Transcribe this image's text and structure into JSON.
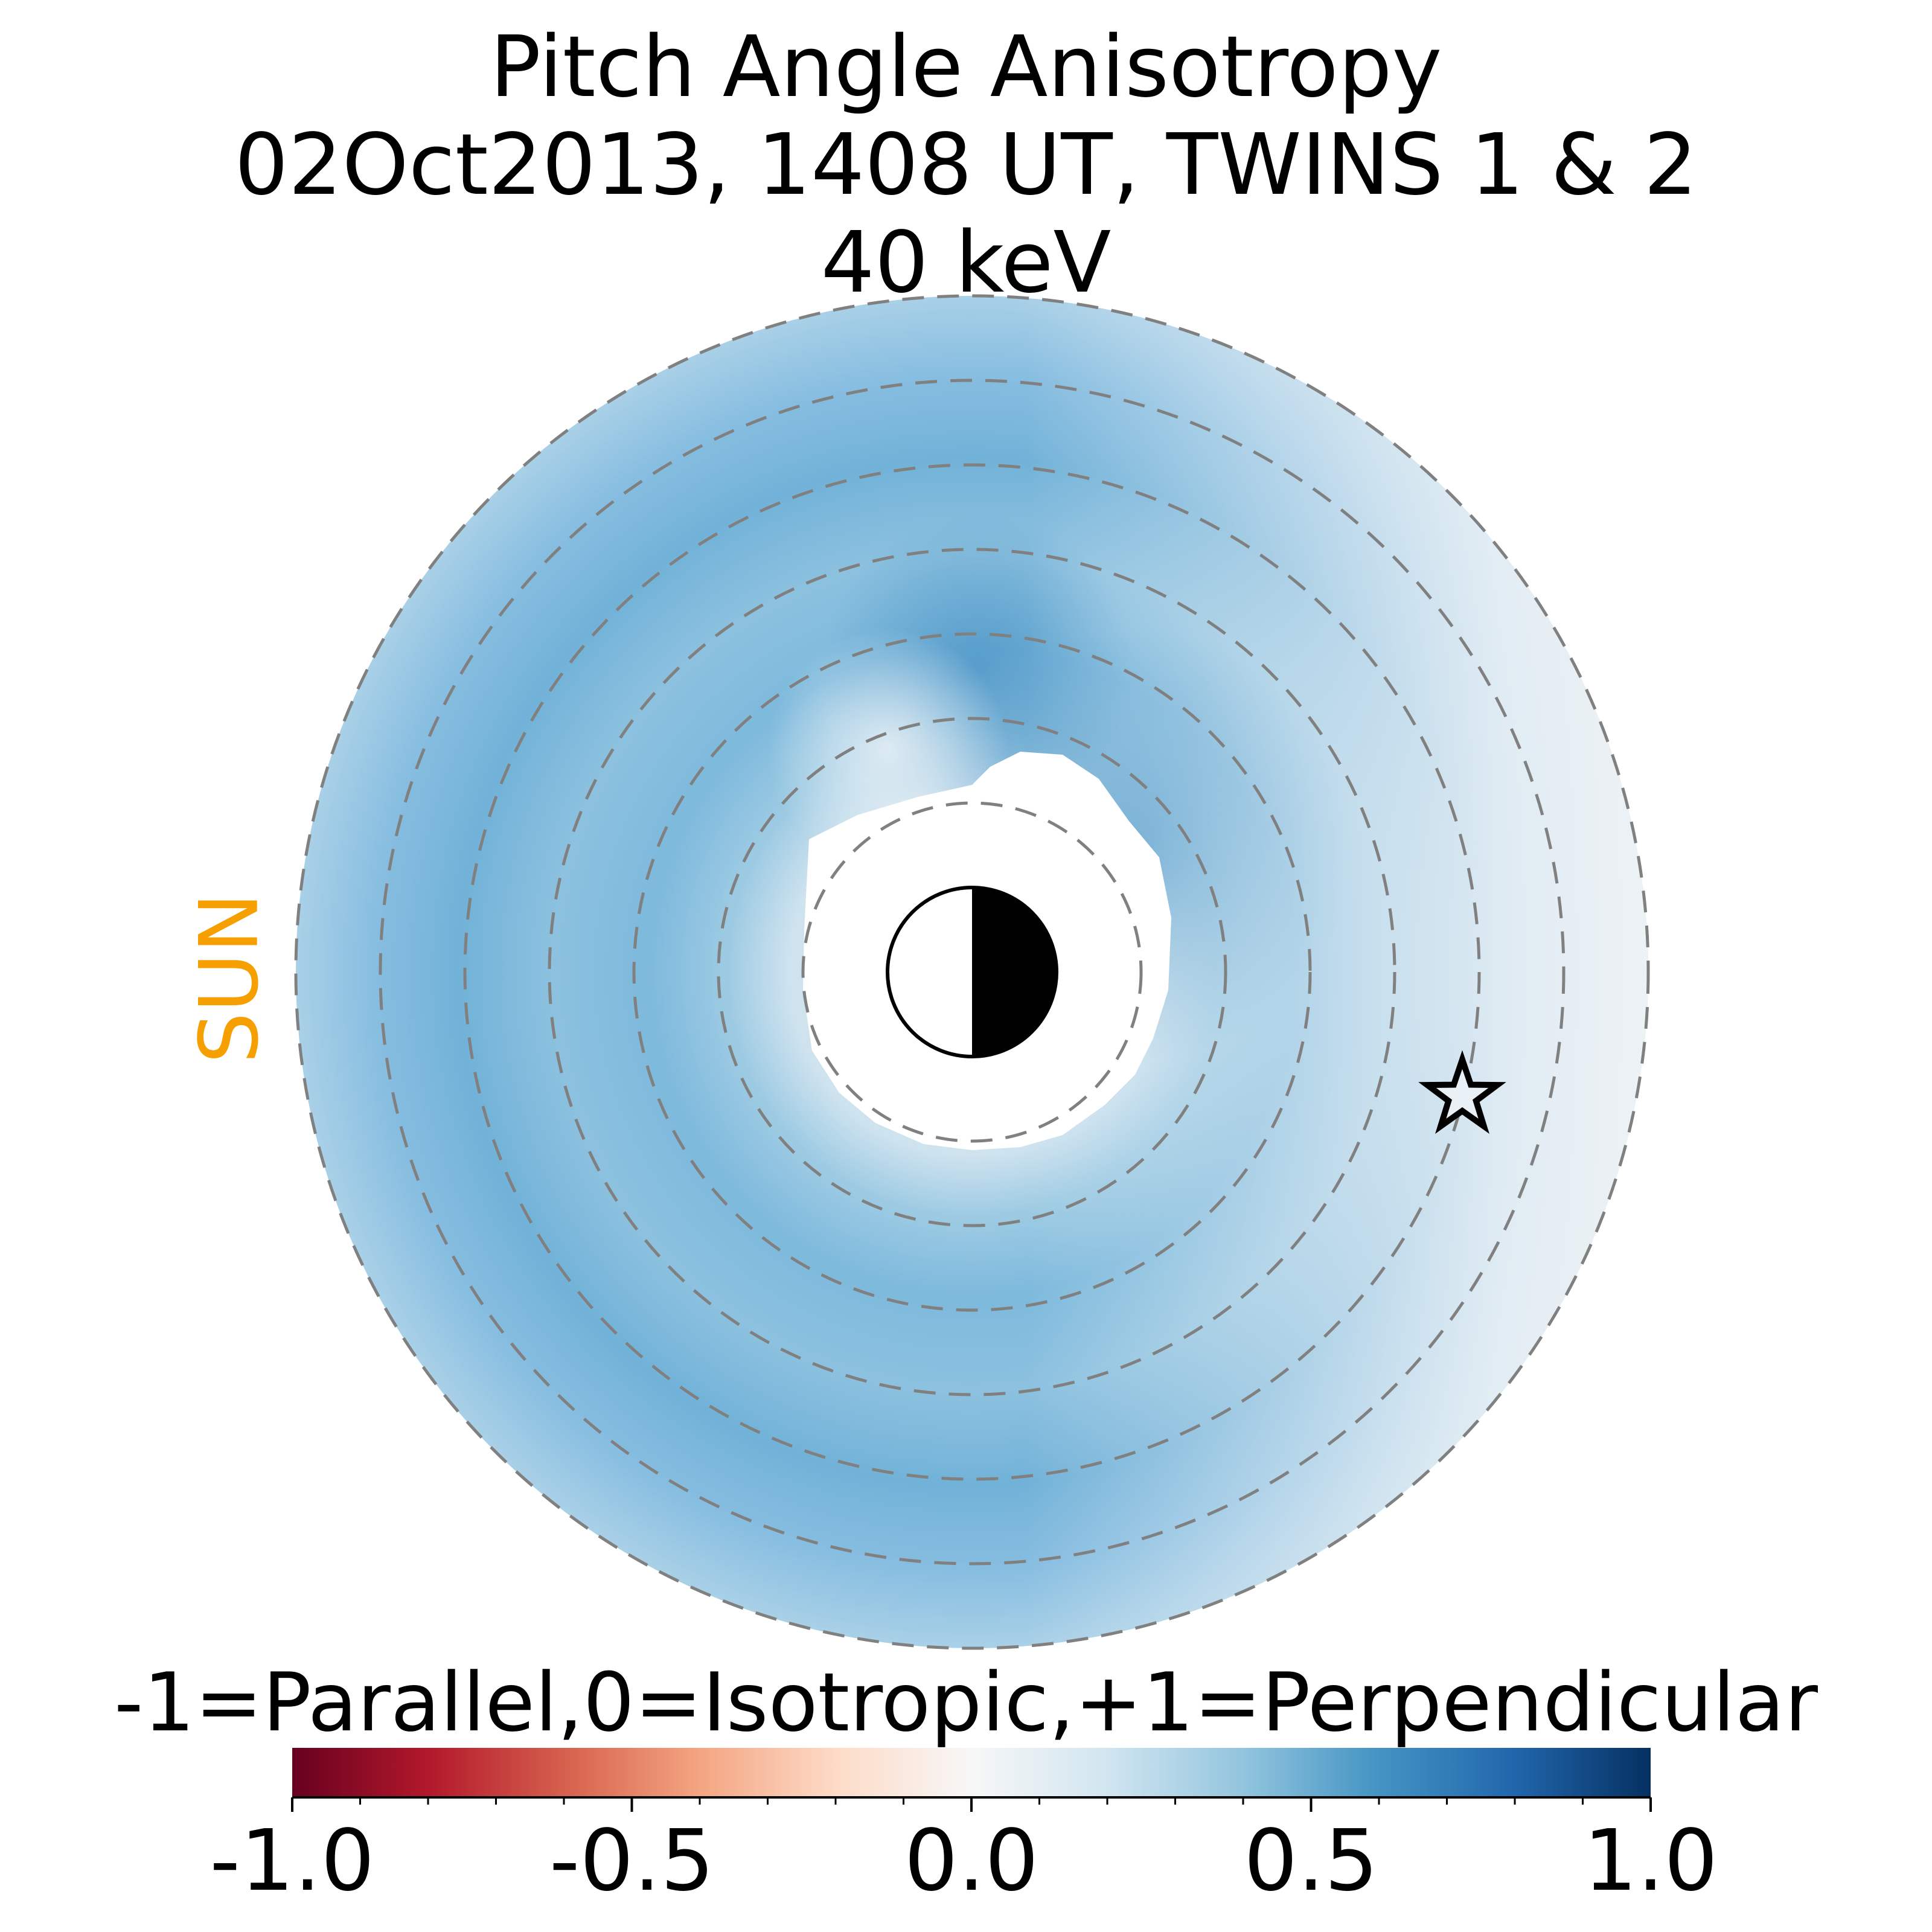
{
  "title": {
    "line1": "Pitch Angle Anisotropy",
    "line2": "02Oct2013, 1408 UT,  TWINS 1 & 2",
    "line3": "40 keV"
  },
  "sun_label": "SUN",
  "colorbar": {
    "label": "-1=Parallel,0=Isotropic,+1=Perpendicular",
    "colormap": "RdBu",
    "vmin": -1.0,
    "vmax": 1.0,
    "tick_values": [
      -1.0,
      -0.5,
      0.0,
      0.5,
      1.0
    ],
    "tick_labels": [
      "-1.0",
      "-0.5",
      "0.0",
      "0.5",
      "1.0"
    ],
    "minor_tick_step": 0.1,
    "colors": [
      "#67001f",
      "#b2182b",
      "#d6604d",
      "#f4a582",
      "#fddbc7",
      "#f7f7f7",
      "#d1e5f0",
      "#92c5de",
      "#4393c3",
      "#2166ac",
      "#053061"
    ]
  },
  "chart_data": {
    "type": "heatmap",
    "projection": "polar equatorial map, Sun to the left",
    "title": "Pitch Angle Anisotropy 02Oct2013, 1408 UT,  TWINS 1 & 2 40 keV",
    "value_range": [
      -1.0,
      1.0
    ],
    "radial_extent_re": [
      2,
      8
    ],
    "reference_circles_re": [
      2,
      3,
      4,
      5,
      6,
      7,
      8
    ],
    "description_values": {
      "typical_anisotropy": 0.4,
      "max_anisotropy_region": 0.55,
      "dusk_side_min": 0.1
    },
    "markers": [
      {
        "name": "star",
        "symbol": "☆"
      }
    ],
    "earth": "day-night terminator, night side dark",
    "ylabel": "",
    "xlabel": ""
  }
}
